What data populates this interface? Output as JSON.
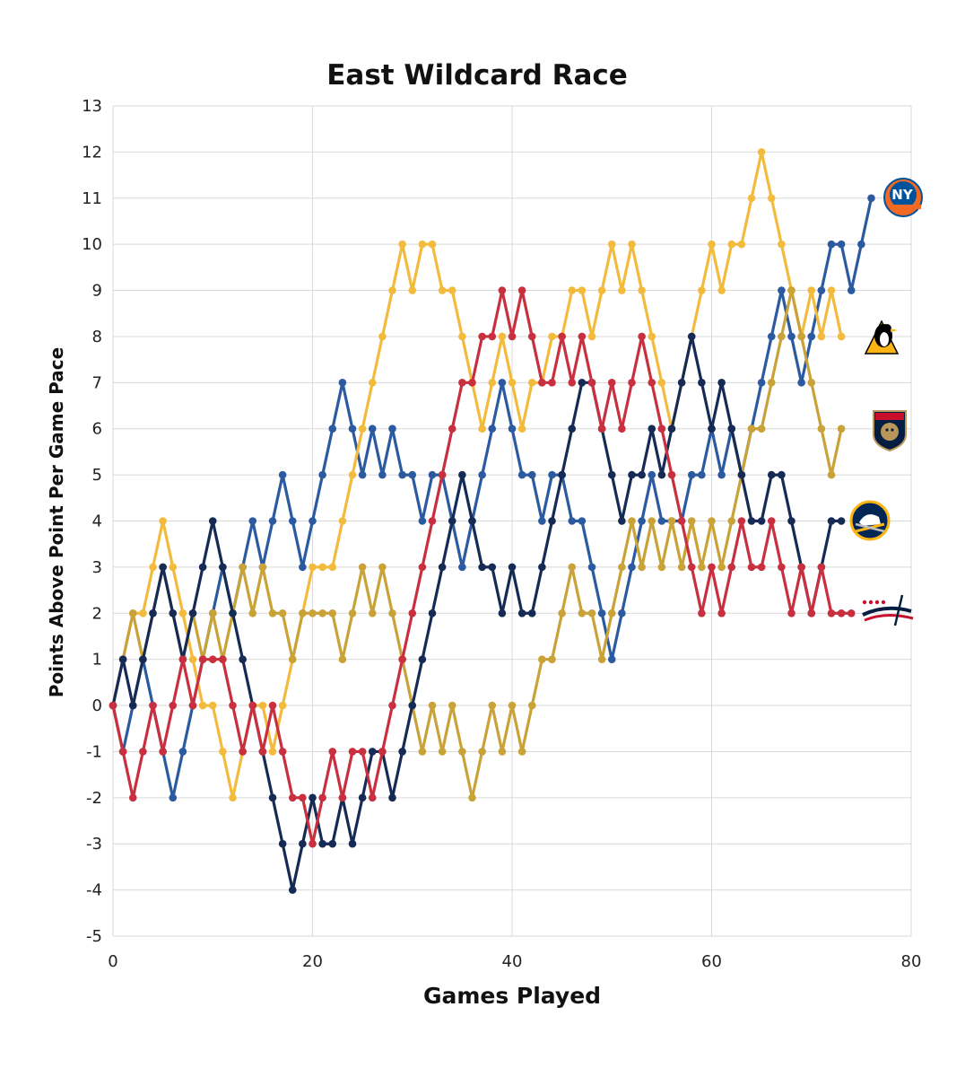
{
  "chart_data": {
    "type": "line",
    "title": "East Wildcard Race",
    "xlabel": "Games Played",
    "ylabel": "Points Above Point Per Game Pace",
    "xlim": [
      0,
      80
    ],
    "ylim": [
      -5,
      13
    ],
    "xticks": [
      "0",
      "20",
      "40",
      "60",
      "80"
    ],
    "yticks": [
      "13",
      "12",
      "11",
      "10",
      "9",
      "8",
      "7",
      "6",
      "5",
      "4",
      "3",
      "2",
      "1",
      "0",
      "-1",
      "-2",
      "-3",
      "-4",
      "-5"
    ],
    "grid": true,
    "legend": "team logos at line ends (right)",
    "series": [
      {
        "logo": "new-york-islanders-logo",
        "color": "#2b5aa0",
        "values": [
          0,
          -1,
          0,
          1,
          0,
          -1,
          -2,
          -1,
          0,
          1,
          2,
          3,
          2,
          3,
          4,
          3,
          4,
          5,
          4,
          3,
          4,
          5,
          6,
          7,
          6,
          5,
          6,
          5,
          6,
          5,
          5,
          4,
          5,
          5,
          4,
          3,
          4,
          5,
          6,
          7,
          6,
          5,
          5,
          4,
          5,
          5,
          4,
          4,
          3,
          2,
          1,
          2,
          3,
          4,
          5,
          4,
          4,
          4,
          5,
          5,
          6,
          5,
          6,
          5,
          6,
          7,
          8,
          9,
          8,
          7,
          8,
          9,
          10,
          10,
          9,
          10,
          11
        ]
      },
      {
        "logo": "pittsburgh-penguins-logo",
        "color": "#f2bb3e",
        "values": [
          0,
          1,
          2,
          2,
          3,
          4,
          3,
          2,
          1,
          0,
          0,
          -1,
          -2,
          -1,
          0,
          0,
          -1,
          0,
          1,
          2,
          3,
          3,
          3,
          4,
          5,
          6,
          7,
          8,
          9,
          10,
          9,
          10,
          10,
          9,
          9,
          8,
          7,
          6,
          7,
          8,
          7,
          6,
          7,
          7,
          8,
          8,
          9,
          9,
          8,
          9,
          10,
          9,
          10,
          9,
          8,
          7,
          6,
          7,
          8,
          9,
          10,
          9,
          10,
          10,
          11,
          12,
          11,
          10,
          9,
          8,
          9,
          8,
          9,
          8
        ]
      },
      {
        "logo": "florida-panthers-logo",
        "color": "#c9a238",
        "values": [
          0,
          1,
          2,
          1,
          2,
          3,
          2,
          1,
          2,
          1,
          2,
          1,
          2,
          3,
          2,
          3,
          2,
          2,
          1,
          2,
          2,
          2,
          2,
          1,
          2,
          3,
          2,
          3,
          2,
          1,
          0,
          -1,
          0,
          -1,
          0,
          -1,
          -2,
          -1,
          0,
          -1,
          0,
          -1,
          0,
          1,
          1,
          2,
          3,
          2,
          2,
          1,
          2,
          3,
          4,
          3,
          4,
          3,
          4,
          3,
          4,
          3,
          4,
          3,
          4,
          5,
          6,
          6,
          7,
          8,
          9,
          8,
          7,
          6,
          5,
          6
        ]
      },
      {
        "logo": "buffalo-sabres-logo",
        "color": "#152a54",
        "values": [
          0,
          1,
          0,
          1,
          2,
          3,
          2,
          1,
          2,
          3,
          4,
          3,
          2,
          1,
          0,
          -1,
          -2,
          -3,
          -4,
          -3,
          -2,
          -3,
          -3,
          -2,
          -3,
          -2,
          -1,
          -1,
          -2,
          -1,
          0,
          1,
          2,
          3,
          4,
          5,
          4,
          3,
          3,
          2,
          3,
          2,
          2,
          3,
          4,
          5,
          6,
          7,
          7,
          6,
          5,
          4,
          5,
          5,
          6,
          5,
          6,
          7,
          8,
          7,
          6,
          7,
          6,
          5,
          4,
          4,
          5,
          5,
          4,
          3,
          2,
          3,
          4,
          4
        ]
      },
      {
        "logo": "washington-capitals-logo",
        "color": "#c8303f",
        "values": [
          0,
          -1,
          -2,
          -1,
          0,
          -1,
          0,
          1,
          0,
          1,
          1,
          1,
          0,
          -1,
          0,
          -1,
          0,
          -1,
          -2,
          -2,
          -3,
          -2,
          -1,
          -2,
          -1,
          -1,
          -2,
          -1,
          0,
          1,
          2,
          3,
          4,
          5,
          6,
          7,
          7,
          8,
          8,
          9,
          8,
          9,
          8,
          7,
          7,
          8,
          7,
          8,
          7,
          6,
          7,
          6,
          7,
          8,
          7,
          6,
          5,
          4,
          3,
          2,
          3,
          2,
          3,
          4,
          3,
          3,
          4,
          3,
          2,
          3,
          2,
          3,
          2,
          2,
          2
        ]
      }
    ]
  }
}
